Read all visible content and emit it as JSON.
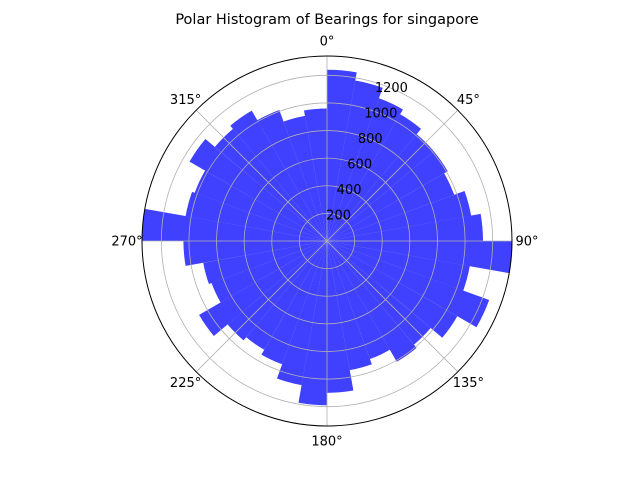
{
  "chart_data": {
    "type": "bar",
    "subtype": "polar-histogram",
    "title": "Polar Histogram of Bearings for singapore",
    "theta_zero": "north",
    "theta_direction": "clockwise",
    "bin_width_deg": 10,
    "bin_start_deg": [
      0,
      10,
      20,
      30,
      40,
      50,
      60,
      70,
      80,
      90,
      100,
      110,
      120,
      130,
      140,
      150,
      160,
      170,
      180,
      190,
      200,
      210,
      220,
      230,
      240,
      250,
      260,
      270,
      280,
      290,
      300,
      310,
      320,
      330,
      340,
      350
    ],
    "values": [
      1240,
      1180,
      1100,
      1060,
      1010,
      1010,
      980,
      1060,
      1130,
      1340,
      1050,
      1250,
      1090,
      980,
      1010,
      910,
      950,
      1100,
      1190,
      1060,
      950,
      910,
      940,
      1070,
      890,
      910,
      1040,
      1340,
      1040,
      1020,
      1150,
      1060,
      1090,
      1010,
      920,
      960
    ],
    "theta_ticks_deg": [
      0,
      45,
      90,
      135,
      180,
      225,
      270,
      315
    ],
    "theta_tick_labels": [
      "0°",
      "45°",
      "90°",
      "135°",
      "180°",
      "225°",
      "270°",
      "315°"
    ],
    "r_ticks": [
      200,
      400,
      600,
      800,
      1000,
      1200
    ],
    "r_tick_labels": [
      "200",
      "400",
      "600",
      "800",
      "1000",
      "1200"
    ],
    "rlim": [
      0,
      1340
    ],
    "r_label_angle_deg": 22.5,
    "grid": true,
    "bar_color": "#0000ff",
    "bar_alpha": 0.75,
    "grid_color": "#b0b0b0"
  }
}
